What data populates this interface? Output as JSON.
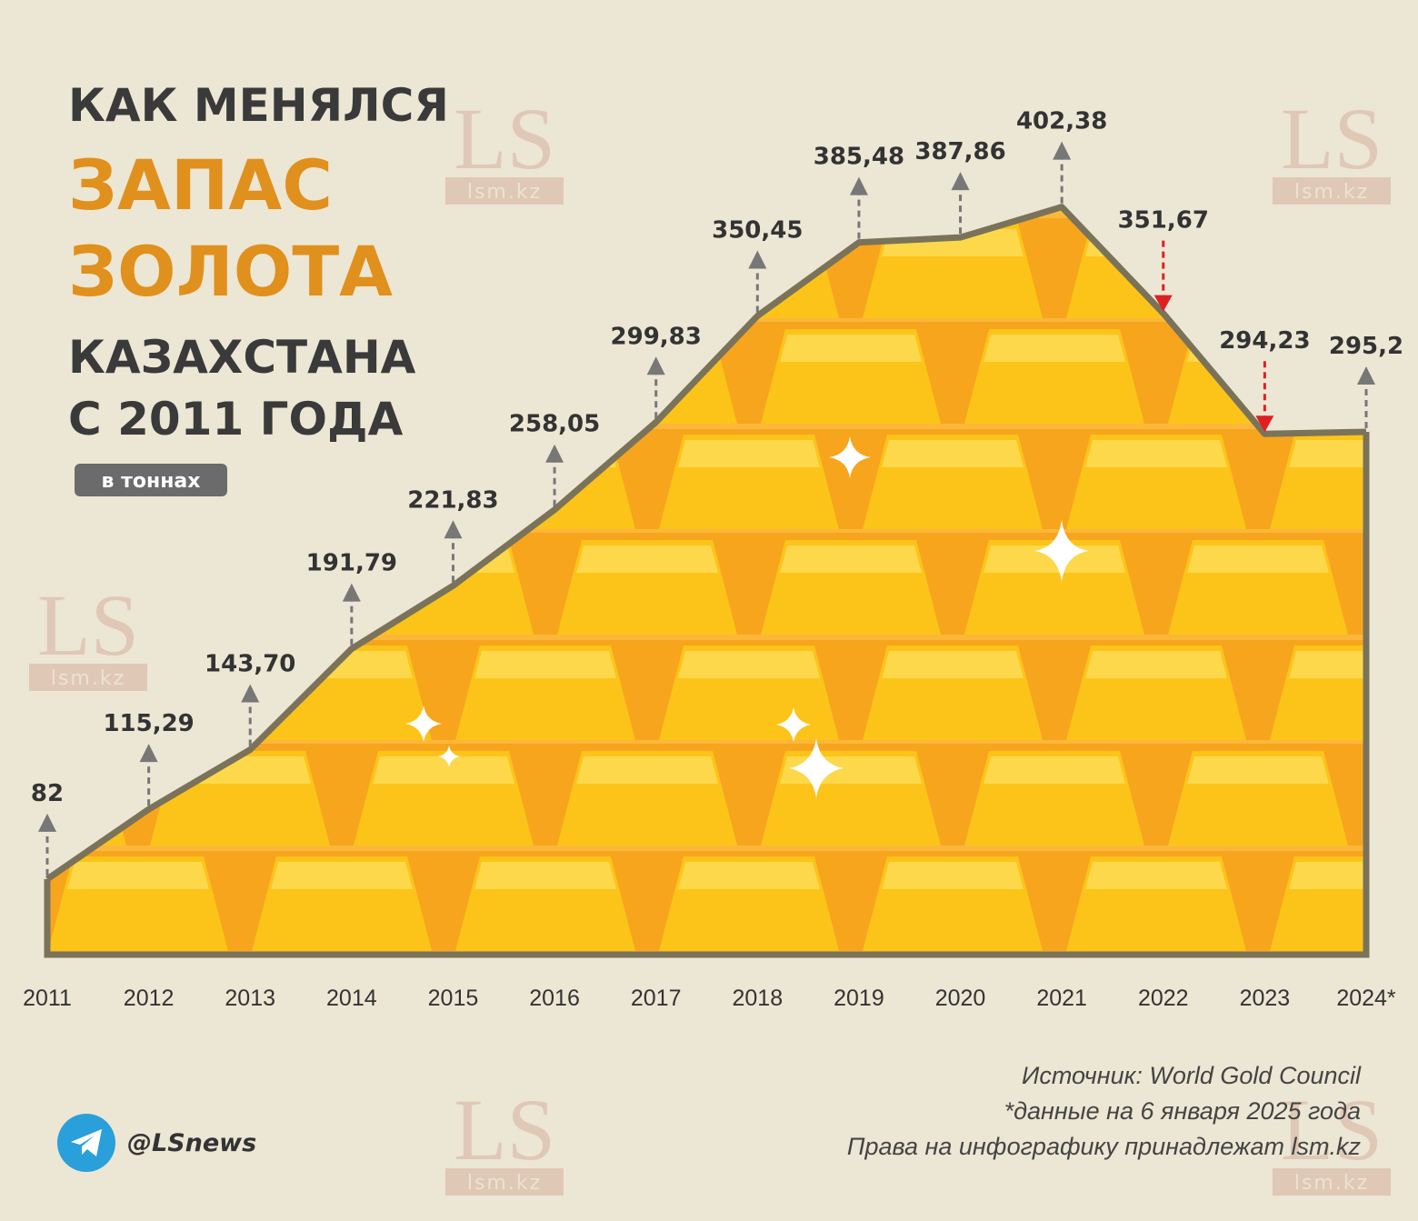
{
  "chart_data": {
    "type": "area",
    "title": [
      "КАК МЕНЯЛСЯ",
      "ЗАПАС",
      "ЗОЛОТА",
      "КАЗАХСТАНА",
      "С 2011 ГОДА"
    ],
    "subtitle": "в тоннах",
    "categories": [
      "2011",
      "2012",
      "2013",
      "2014",
      "2015",
      "2016",
      "2017",
      "2018",
      "2019",
      "2020",
      "2021",
      "2022",
      "2023",
      "2024*"
    ],
    "values": [
      82,
      115.29,
      143.7,
      191.79,
      221.83,
      258.05,
      299.83,
      350.45,
      385.48,
      387.86,
      402.38,
      351.67,
      294.23,
      295.2
    ],
    "value_labels": [
      "82",
      "115,29",
      "143,70",
      "191,79",
      "221,83",
      "258,05",
      "299,83",
      "350,45",
      "385,48",
      "387,86",
      "402,38",
      "351,67",
      "294,23",
      "295,2"
    ],
    "ylim": [
      46,
      420
    ],
    "color": "#f7a51d",
    "line_color": "#7a735a",
    "source": "Источник: World Gold Council",
    "note": "*данные на 6 января 2025 года",
    "rights": "Права на инфографику принадлежат lsm.kz",
    "handle": "@LSnews",
    "watermark": {
      "logo": "LS",
      "site": "lsm.kz"
    }
  }
}
